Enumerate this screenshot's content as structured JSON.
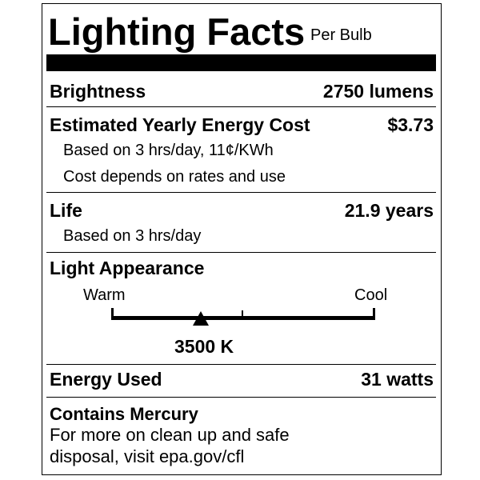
{
  "header": {
    "title": "Lighting Facts",
    "subtitle": "Per Bulb"
  },
  "brightness": {
    "label": "Brightness",
    "value": "2750 lumens"
  },
  "energy_cost": {
    "label": "Estimated Yearly Energy Cost",
    "value": "$3.73",
    "note1": "Based on 3 hrs/day, 11¢/KWh",
    "note2": "Cost depends on rates and use"
  },
  "life": {
    "label": "Life",
    "value": "21.9 years",
    "note": "Based on 3 hrs/day"
  },
  "appearance": {
    "label": "Light Appearance",
    "warm_label": "Warm",
    "cool_label": "Cool",
    "value": "3500 K",
    "marker_fraction": 0.34
  },
  "energy_used": {
    "label": "Energy Used",
    "value": "31 watts"
  },
  "mercury": {
    "label": "Contains Mercury",
    "line1": "For more on clean up and safe",
    "line2": "disposal, visit epa.gov/cfl"
  },
  "colors": {
    "ink": "#000000",
    "background": "#ffffff"
  }
}
